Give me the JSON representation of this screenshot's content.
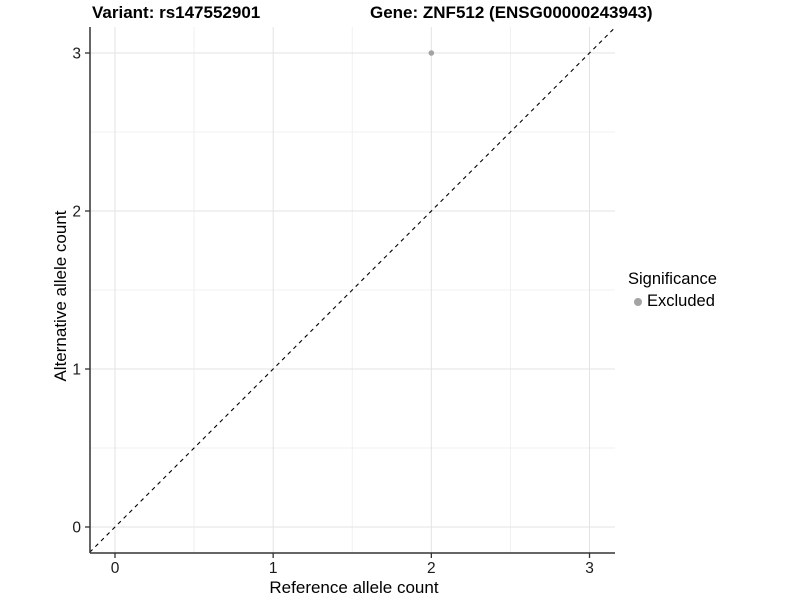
{
  "chart_data": {
    "type": "scatter",
    "title_left": "Variant: rs147552901",
    "title_right": "Gene: ZNF512 (ENSG00000243943)",
    "xlabel": "Reference allele count",
    "ylabel": "Alternative allele count",
    "xlim": [
      -0.16,
      3.16
    ],
    "ylim": [
      -0.16,
      3.16
    ],
    "x_major_ticks": [
      0,
      1,
      2,
      3
    ],
    "y_major_ticks": [
      0,
      1,
      2,
      3
    ],
    "x_tick_labels": [
      "0",
      "1",
      "2",
      "3"
    ],
    "y_tick_labels": [
      "0",
      "1",
      "2",
      "3"
    ],
    "x_minor_ticks": [
      0.5,
      1.5,
      2.5
    ],
    "y_minor_ticks": [
      0.5,
      1.5,
      2.5
    ],
    "grid": "major and minor, light gray, white background",
    "reference_line": {
      "type": "identity",
      "style": "dashed",
      "from": [
        -0.16,
        -0.16
      ],
      "to": [
        3.16,
        3.16
      ]
    },
    "series": [
      {
        "name": "Excluded",
        "color": "#a3a3a3",
        "points": [
          {
            "x": 2,
            "y": 3
          }
        ]
      }
    ],
    "legend": {
      "title": "Significance",
      "position": "right",
      "items": [
        {
          "label": "Excluded",
          "color": "#a3a3a3"
        }
      ]
    }
  },
  "colors": {
    "background": "#ffffff",
    "grid_major": "#e3e3e3",
    "grid_minor": "#f0f0f0",
    "axis_line": "#333333",
    "tick_label": "#1a1a1a",
    "dashed_line": "#000000",
    "point": "#a3a3a3"
  }
}
